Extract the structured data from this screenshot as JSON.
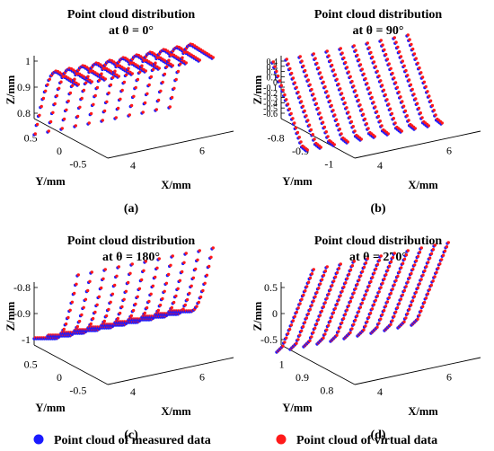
{
  "legend": {
    "measured": {
      "label": "Point cloud of measured data",
      "color": "#1a1aff"
    },
    "virtual": {
      "label": "Point cloud of virtual data",
      "color": "#ff1a1a"
    }
  },
  "chart_data": [
    {
      "type": "scatter",
      "title": [
        "Point cloud distribution",
        "at θ = 0°"
      ],
      "panel_label": "(a)",
      "xlabel": "X/mm",
      "ylabel": "Y/mm",
      "zlabel": "Z/mm",
      "x_ticks": [
        "4",
        "6"
      ],
      "y_ticks": [
        "0.5",
        "0",
        "-0.5"
      ],
      "z_ticks": [
        "1",
        "0.9",
        "0.8"
      ],
      "xlim": [
        4,
        7
      ],
      "ylim": [
        -0.6,
        0.6
      ],
      "zlim": [
        0.75,
        1.0
      ],
      "shape": "convex half-pipe (arch) along X, peak near Z = 0.9"
    },
    {
      "type": "scatter",
      "title": [
        "Point cloud distribution",
        "at θ = 90°"
      ],
      "panel_label": "(b)",
      "xlabel": "X/mm",
      "ylabel": "Y/mm",
      "zlabel": "Z/mm",
      "x_ticks": [
        "4",
        "6"
      ],
      "y_ticks": [
        "-0.8",
        "-0.9",
        "-1"
      ],
      "z_ticks": [
        "0.4",
        "0.3",
        "0.2",
        "0.1",
        "0",
        "-0.1",
        "-0.2",
        "-0.3",
        "-0.4",
        "-0.5",
        "-0.6"
      ],
      "xlim": [
        4,
        7
      ],
      "ylim": [
        -1.05,
        -0.75
      ],
      "zlim": [
        -0.65,
        0.45
      ],
      "shape": "surface rotated by 90 degrees, curved edge at bottom"
    },
    {
      "type": "scatter",
      "title": [
        "Point cloud distribution",
        "at θ = 180°"
      ],
      "panel_label": "(c)",
      "xlabel": "X/mm",
      "ylabel": "Y/mm",
      "zlabel": "Z/mm",
      "x_ticks": [
        "4",
        "6"
      ],
      "y_ticks": [
        "0.5",
        "0",
        "-0.5"
      ],
      "z_ticks": [
        "-0.8",
        "-0.9",
        "-1"
      ],
      "xlim": [
        4,
        7
      ],
      "ylim": [
        -0.6,
        0.6
      ],
      "zlim": [
        -1.05,
        -0.78
      ],
      "shape": "concave trough along X"
    },
    {
      "type": "scatter",
      "title": [
        "Point cloud distribution",
        "at θ = 270°"
      ],
      "panel_label": "(d)",
      "xlabel": "X/mm",
      "ylabel": "Y/mm",
      "zlabel": "Z/mm",
      "x_ticks": [
        "4",
        "6"
      ],
      "y_ticks": [
        "1",
        "0.9",
        "0.8"
      ],
      "z_ticks": [
        "0.5",
        "0",
        "-0.5"
      ],
      "xlim": [
        4,
        7
      ],
      "ylim": [
        0.75,
        1.05
      ],
      "zlim": [
        -0.65,
        0.55
      ],
      "shape": "surface rotated by 270 degrees, curved edge at top"
    }
  ]
}
